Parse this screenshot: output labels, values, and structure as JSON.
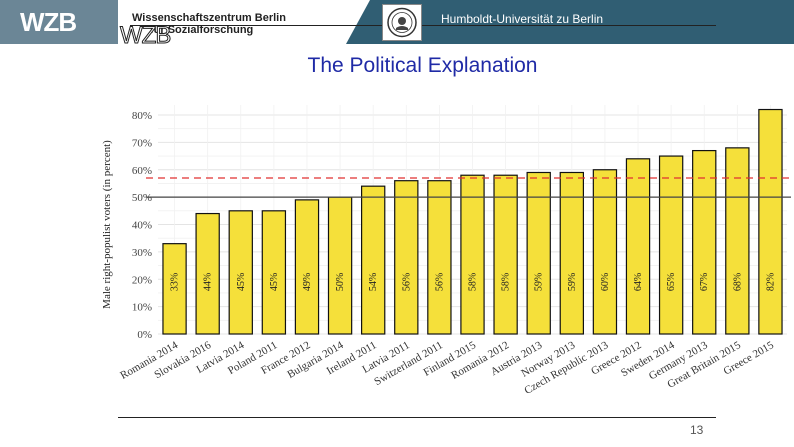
{
  "header": {
    "logo_text": "WZB",
    "institution_line1": "Wissenschaftszentrum Berlin",
    "institution_line2": "für Sozialforschung",
    "university": "Humboldt-Universität zu Berlin",
    "colors": {
      "left_block": "#6b8696",
      "right_block": "#305e73"
    }
  },
  "slide": {
    "title": "The Political Explanation",
    "page_number": "13"
  },
  "chart_data": {
    "type": "bar",
    "title": "",
    "xlabel": "",
    "ylabel": "Male right-populist voters (in percent)",
    "categories": [
      "Romania 2014",
      "Slovakia 2016",
      "Latvia 2014",
      "Poland 2011",
      "France 2012",
      "Bulgaria 2014",
      "Ireland 2011",
      "Latvia 2011",
      "Switzerland 2011",
      "Finland 2015",
      "Romania 2012",
      "Austria 2013",
      "Norway 2013",
      "Czech Republic 2013",
      "Greece 2012",
      "Sweden 2014",
      "Germany 2013",
      "Great Britain 2015",
      "Greece 2015"
    ],
    "values": [
      33,
      44,
      45,
      45,
      49,
      50,
      54,
      56,
      56,
      58,
      58,
      59,
      59,
      60,
      64,
      65,
      67,
      68,
      82
    ],
    "bar_labels": [
      "33%",
      "44%",
      "45%",
      "45%",
      "49%",
      "50%",
      "54%",
      "56%",
      "56%",
      "58%",
      "58%",
      "59%",
      "59%",
      "60%",
      "64%",
      "65%",
      "67%",
      "68%",
      "82%"
    ],
    "ylim": [
      0,
      80
    ],
    "yticks": [
      0,
      10,
      20,
      30,
      40,
      50,
      60,
      70,
      80
    ],
    "ytick_labels": [
      "0%",
      "10%",
      "20%",
      "30%",
      "40%",
      "50%",
      "60%",
      "70%",
      "80%"
    ],
    "reference_lines": [
      {
        "name": "parity",
        "value": 50,
        "style": "solid",
        "color": "#444444"
      },
      {
        "name": "mean",
        "value": 57,
        "style": "dashed",
        "color": "#e03030"
      }
    ],
    "grid": true,
    "bar_color": "#f5e03a"
  }
}
